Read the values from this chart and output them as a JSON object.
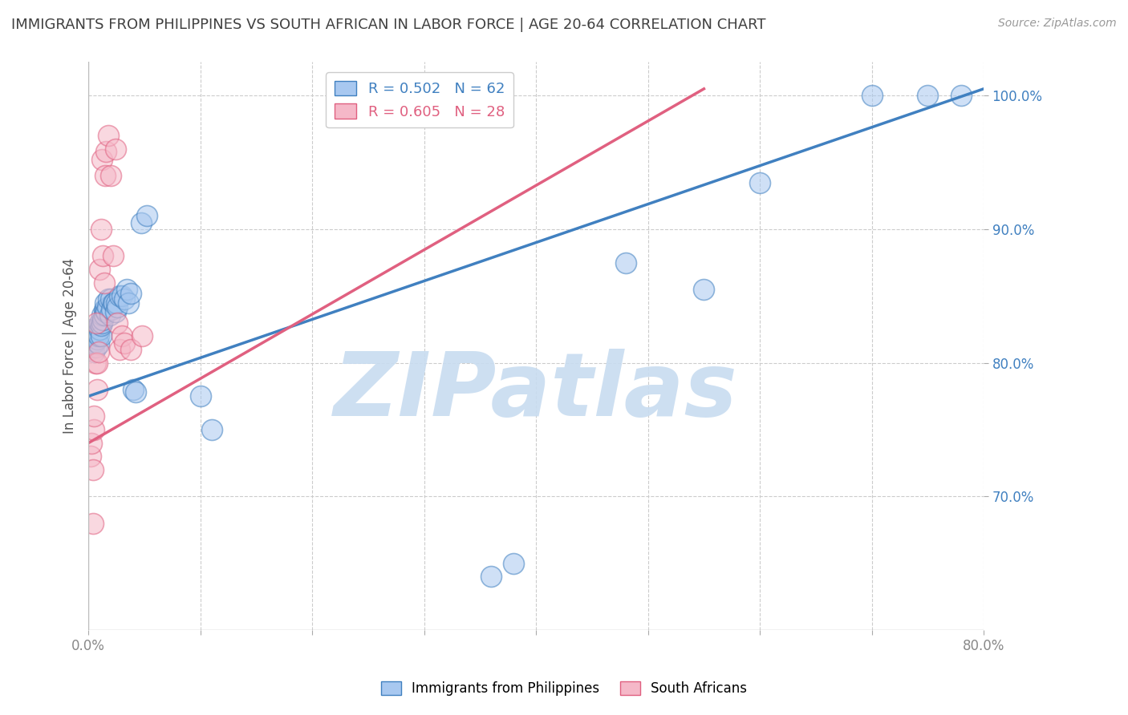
{
  "title": "IMMIGRANTS FROM PHILIPPINES VS SOUTH AFRICAN IN LABOR FORCE | AGE 20-64 CORRELATION CHART",
  "source": "Source: ZipAtlas.com",
  "ylabel": "In Labor Force | Age 20-64",
  "xlim": [
    0.0,
    0.8
  ],
  "ylim": [
    0.6,
    1.025
  ],
  "yticks_right": [
    0.7,
    0.8,
    0.9,
    1.0
  ],
  "ytick_labels_right": [
    "70.0%",
    "80.0%",
    "90.0%",
    "100.0%"
  ],
  "blue_R": "0.502",
  "blue_N": "62",
  "pink_R": "0.605",
  "pink_N": "28",
  "blue_color": "#A8C8F0",
  "pink_color": "#F5B8C8",
  "blue_line_color": "#4080C0",
  "pink_line_color": "#E06080",
  "grid_color": "#CCCCCC",
  "title_color": "#404040",
  "right_axis_color": "#4080C0",
  "watermark_color": "#C8DCF0",
  "watermark_text": "ZIPatlas",
  "legend_label_blue": "Immigrants from Philippines",
  "legend_label_pink": "South Africans",
  "blue_x": [
    0.001,
    0.002,
    0.002,
    0.003,
    0.003,
    0.003,
    0.004,
    0.004,
    0.005,
    0.005,
    0.005,
    0.006,
    0.006,
    0.006,
    0.007,
    0.007,
    0.008,
    0.008,
    0.009,
    0.009,
    0.01,
    0.01,
    0.011,
    0.011,
    0.012,
    0.012,
    0.013,
    0.014,
    0.014,
    0.015,
    0.015,
    0.016,
    0.017,
    0.018,
    0.019,
    0.02,
    0.021,
    0.022,
    0.023,
    0.024,
    0.025,
    0.026,
    0.028,
    0.03,
    0.032,
    0.034,
    0.036,
    0.038,
    0.04,
    0.042,
    0.047,
    0.052,
    0.1,
    0.11,
    0.36,
    0.38,
    0.48,
    0.55,
    0.6,
    0.7,
    0.75,
    0.78
  ],
  "blue_y": [
    0.81,
    0.815,
    0.822,
    0.814,
    0.82,
    0.825,
    0.812,
    0.82,
    0.808,
    0.815,
    0.82,
    0.816,
    0.82,
    0.825,
    0.812,
    0.82,
    0.818,
    0.822,
    0.814,
    0.82,
    0.825,
    0.83,
    0.82,
    0.828,
    0.83,
    0.836,
    0.832,
    0.84,
    0.836,
    0.84,
    0.845,
    0.838,
    0.842,
    0.848,
    0.836,
    0.848,
    0.84,
    0.845,
    0.845,
    0.838,
    0.845,
    0.842,
    0.85,
    0.85,
    0.848,
    0.855,
    0.845,
    0.852,
    0.78,
    0.778,
    0.905,
    0.91,
    0.775,
    0.75,
    0.64,
    0.65,
    0.875,
    0.855,
    0.935,
    1.0,
    1.0,
    1.0
  ],
  "pink_x": [
    0.002,
    0.003,
    0.004,
    0.004,
    0.005,
    0.005,
    0.006,
    0.007,
    0.008,
    0.008,
    0.009,
    0.01,
    0.011,
    0.012,
    0.013,
    0.014,
    0.015,
    0.016,
    0.018,
    0.02,
    0.022,
    0.024,
    0.026,
    0.028,
    0.03,
    0.032,
    0.038,
    0.048
  ],
  "pink_y": [
    0.73,
    0.74,
    0.68,
    0.72,
    0.75,
    0.76,
    0.8,
    0.83,
    0.78,
    0.8,
    0.808,
    0.87,
    0.9,
    0.952,
    0.88,
    0.86,
    0.94,
    0.958,
    0.97,
    0.94,
    0.88,
    0.96,
    0.83,
    0.81,
    0.82,
    0.815,
    0.81,
    0.82
  ],
  "blue_line_x": [
    0.0,
    0.8
  ],
  "blue_line_y": [
    0.775,
    1.005
  ],
  "pink_line_x": [
    0.0,
    0.55
  ],
  "pink_line_y": [
    0.74,
    1.005
  ]
}
